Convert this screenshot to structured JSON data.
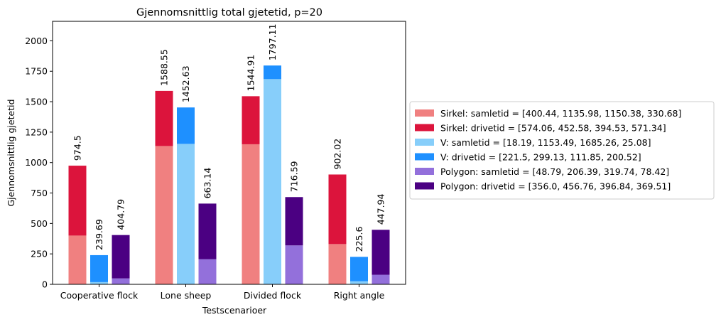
{
  "chart_data": {
    "type": "bar",
    "stacked": true,
    "title": "Gjennomsnittlig total gjetetid, p=20",
    "xlabel": "Testscenarioer",
    "ylabel": "Gjennomsnittlig gjetetid",
    "categories": [
      "Cooperative flock",
      "Lone sheep",
      "Divided flock",
      "Right angle"
    ],
    "ylim": [
      0,
      2160
    ],
    "yticks": [
      "0",
      "250",
      "500",
      "750",
      "1000",
      "1250",
      "1500",
      "1750",
      "2000"
    ],
    "grid": false,
    "legend_position": "outside-right",
    "groups": [
      {
        "name": "Sirkel",
        "totals": [
          "974.5",
          "1588.55",
          "1544.91",
          "902.02"
        ],
        "segments": [
          {
            "label": "Sirkel: samletid = [400.44, 1135.98, 1150.38, 330.68]",
            "color": "#f08080",
            "values": [
              400.44,
              1135.98,
              1150.38,
              330.68
            ]
          },
          {
            "label": "Sirkel: drivetid = [574.06, 452.58, 394.53, 571.34]",
            "color": "#dc143c",
            "values": [
              574.06,
              452.58,
              394.53,
              571.34
            ]
          }
        ]
      },
      {
        "name": "V",
        "totals": [
          "239.69",
          "1452.63",
          "1797.11",
          "225.6"
        ],
        "segments": [
          {
            "label": "V: samletid = [18.19, 1153.49, 1685.26, 25.08]",
            "color": "#87cefa",
            "values": [
              18.19,
              1153.49,
              1685.26,
              25.08
            ]
          },
          {
            "label": "V: drivetid = [221.5, 299.13, 111.85, 200.52]",
            "color": "#1e90ff",
            "values": [
              221.5,
              299.13,
              111.85,
              200.52
            ]
          }
        ]
      },
      {
        "name": "Polygon",
        "totals": [
          "404.79",
          "663.14",
          "716.59",
          "447.94"
        ],
        "segments": [
          {
            "label": "Polygon: samletid = [48.79, 206.39, 319.74, 78.42]",
            "color": "#9370db",
            "values": [
              48.79,
              206.39,
              319.74,
              78.42
            ]
          },
          {
            "label": "Polygon: drivetid = [356.0, 456.76, 396.84, 369.51]",
            "color": "#4b0082",
            "values": [
              356.0,
              456.76,
              396.84,
              369.51
            ]
          }
        ]
      }
    ]
  }
}
